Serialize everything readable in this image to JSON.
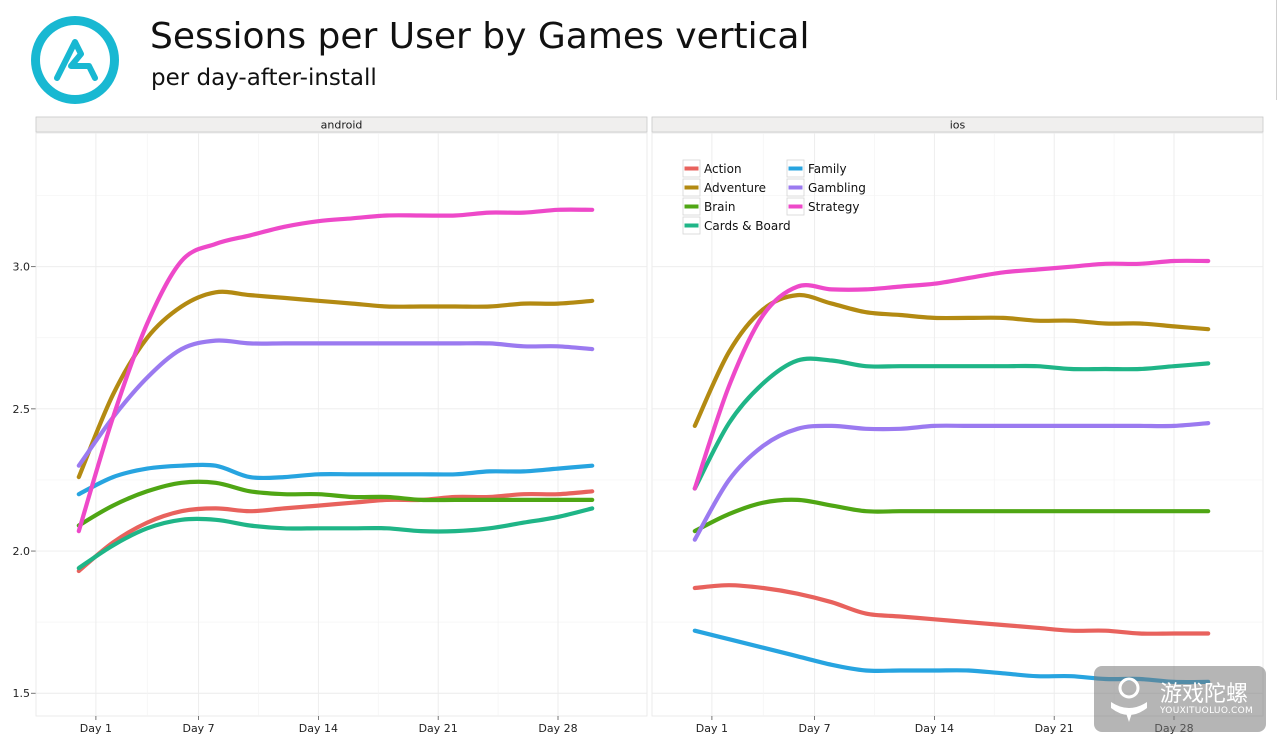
{
  "header": {
    "title": "Sessions per User by Games vertical",
    "subtitle": "per day-after-install",
    "logo_icon": "brand-logo-icon"
  },
  "colors": {
    "Action": "#E8625D",
    "Adventure": "#B38A12",
    "Brain": "#4FA614",
    "Cards & Board": "#1FB587",
    "Family": "#27A4E0",
    "Gambling": "#9B7AF0",
    "Strategy": "#EE49C9",
    "logo": "#18B8D2"
  },
  "watermark": {
    "cn": "游戏陀螺",
    "en": "YOUXITUOLUO.COM"
  },
  "chart_data": {
    "type": "line",
    "ylim": [
      1.42,
      3.47
    ],
    "xlim": [
      -2.5,
      33.2
    ],
    "x_ticks": [
      1,
      7,
      14,
      21,
      28
    ],
    "x_tick_labels": [
      "Day 1",
      "Day 7",
      "Day 14",
      "Day 21",
      "Day 28"
    ],
    "y_ticks": [
      1.5,
      2.0,
      2.5,
      3.0
    ],
    "y_tick_labels": [
      "1.5",
      "2.0",
      "2.5",
      "3.0"
    ],
    "grid": true,
    "legend": {
      "placement": "top-left of ios panel",
      "entries": [
        "Action",
        "Adventure",
        "Brain",
        "Cards & Board",
        "Family",
        "Gambling",
        "Strategy"
      ]
    },
    "panels": [
      {
        "name": "android",
        "series": [
          {
            "name": "Action",
            "x": [
              0,
              2,
              4,
              6,
              8,
              10,
              12,
              14,
              16,
              18,
              20,
              22,
              24,
              26,
              28,
              30
            ],
            "values": [
              1.93,
              2.03,
              2.1,
              2.14,
              2.15,
              2.14,
              2.15,
              2.16,
              2.17,
              2.18,
              2.18,
              2.19,
              2.19,
              2.2,
              2.2,
              2.21
            ]
          },
          {
            "name": "Adventure",
            "x": [
              0,
              2,
              4,
              6,
              8,
              10,
              12,
              14,
              16,
              18,
              20,
              22,
              24,
              26,
              28,
              30
            ],
            "values": [
              2.26,
              2.55,
              2.75,
              2.86,
              2.91,
              2.9,
              2.89,
              2.88,
              2.87,
              2.86,
              2.86,
              2.86,
              2.86,
              2.87,
              2.87,
              2.88
            ]
          },
          {
            "name": "Brain",
            "x": [
              0,
              2,
              4,
              6,
              8,
              10,
              12,
              14,
              16,
              18,
              20,
              22,
              24,
              26,
              28,
              30
            ],
            "values": [
              2.09,
              2.16,
              2.21,
              2.24,
              2.24,
              2.21,
              2.2,
              2.2,
              2.19,
              2.19,
              2.18,
              2.18,
              2.18,
              2.18,
              2.18,
              2.18
            ]
          },
          {
            "name": "Cards & Board",
            "x": [
              0,
              2,
              4,
              6,
              8,
              10,
              12,
              14,
              16,
              18,
              20,
              22,
              24,
              26,
              28,
              30
            ],
            "values": [
              1.94,
              2.02,
              2.08,
              2.11,
              2.11,
              2.09,
              2.08,
              2.08,
              2.08,
              2.08,
              2.07,
              2.07,
              2.08,
              2.1,
              2.12,
              2.15
            ]
          },
          {
            "name": "Family",
            "x": [
              0,
              2,
              4,
              6,
              8,
              10,
              12,
              14,
              16,
              18,
              20,
              22,
              24,
              26,
              28,
              30
            ],
            "values": [
              2.2,
              2.26,
              2.29,
              2.3,
              2.3,
              2.26,
              2.26,
              2.27,
              2.27,
              2.27,
              2.27,
              2.27,
              2.28,
              2.28,
              2.29,
              2.3
            ]
          },
          {
            "name": "Gambling",
            "x": [
              0,
              2,
              4,
              6,
              8,
              10,
              12,
              14,
              16,
              18,
              20,
              22,
              24,
              26,
              28,
              30
            ],
            "values": [
              2.3,
              2.47,
              2.61,
              2.71,
              2.74,
              2.73,
              2.73,
              2.73,
              2.73,
              2.73,
              2.73,
              2.73,
              2.73,
              2.72,
              2.72,
              2.71
            ]
          },
          {
            "name": "Strategy",
            "x": [
              0,
              2,
              4,
              6,
              8,
              10,
              12,
              14,
              16,
              18,
              20,
              22,
              24,
              26,
              28,
              30
            ],
            "values": [
              2.07,
              2.47,
              2.8,
              3.02,
              3.08,
              3.11,
              3.14,
              3.16,
              3.17,
              3.18,
              3.18,
              3.18,
              3.19,
              3.19,
              3.2,
              3.2
            ]
          }
        ]
      },
      {
        "name": "ios",
        "series": [
          {
            "name": "Action",
            "x": [
              0,
              2,
              4,
              6,
              8,
              10,
              12,
              14,
              16,
              18,
              20,
              22,
              24,
              26,
              28,
              30
            ],
            "values": [
              1.87,
              1.88,
              1.87,
              1.85,
              1.82,
              1.78,
              1.77,
              1.76,
              1.75,
              1.74,
              1.73,
              1.72,
              1.72,
              1.71,
              1.71,
              1.71
            ]
          },
          {
            "name": "Adventure",
            "x": [
              0,
              2,
              4,
              6,
              8,
              10,
              12,
              14,
              16,
              18,
              20,
              22,
              24,
              26,
              28,
              30
            ],
            "values": [
              2.44,
              2.7,
              2.85,
              2.9,
              2.87,
              2.84,
              2.83,
              2.82,
              2.82,
              2.82,
              2.81,
              2.81,
              2.8,
              2.8,
              2.79,
              2.78
            ]
          },
          {
            "name": "Brain",
            "x": [
              0,
              2,
              4,
              6,
              8,
              10,
              12,
              14,
              16,
              18,
              20,
              22,
              24,
              26,
              28,
              30
            ],
            "values": [
              2.07,
              2.13,
              2.17,
              2.18,
              2.16,
              2.14,
              2.14,
              2.14,
              2.14,
              2.14,
              2.14,
              2.14,
              2.14,
              2.14,
              2.14,
              2.14
            ]
          },
          {
            "name": "Cards & Board",
            "x": [
              0,
              2,
              4,
              6,
              8,
              10,
              12,
              14,
              16,
              18,
              20,
              22,
              24,
              26,
              28,
              30
            ],
            "values": [
              2.22,
              2.45,
              2.59,
              2.67,
              2.67,
              2.65,
              2.65,
              2.65,
              2.65,
              2.65,
              2.65,
              2.64,
              2.64,
              2.64,
              2.65,
              2.66
            ]
          },
          {
            "name": "Family",
            "x": [
              0,
              2,
              4,
              6,
              8,
              10,
              12,
              14,
              16,
              18,
              20,
              22,
              24,
              26,
              28,
              30
            ],
            "values": [
              1.72,
              1.69,
              1.66,
              1.63,
              1.6,
              1.58,
              1.58,
              1.58,
              1.58,
              1.57,
              1.56,
              1.56,
              1.55,
              1.55,
              1.54,
              1.54
            ]
          },
          {
            "name": "Gambling",
            "x": [
              0,
              2,
              4,
              6,
              8,
              10,
              12,
              14,
              16,
              18,
              20,
              22,
              24,
              26,
              28,
              30
            ],
            "values": [
              2.04,
              2.25,
              2.37,
              2.43,
              2.44,
              2.43,
              2.43,
              2.44,
              2.44,
              2.44,
              2.44,
              2.44,
              2.44,
              2.44,
              2.44,
              2.45
            ]
          },
          {
            "name": "Strategy",
            "x": [
              0,
              2,
              4,
              6,
              8,
              10,
              12,
              14,
              16,
              18,
              20,
              22,
              24,
              26,
              28,
              30
            ],
            "values": [
              2.22,
              2.58,
              2.83,
              2.93,
              2.92,
              2.92,
              2.93,
              2.94,
              2.96,
              2.98,
              2.99,
              3.0,
              3.01,
              3.01,
              3.02,
              3.02
            ]
          }
        ]
      }
    ]
  }
}
